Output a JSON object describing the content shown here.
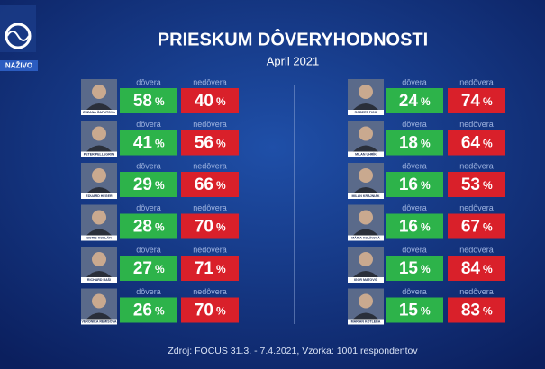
{
  "logo": {
    "badge": "NAŽIVO"
  },
  "header": {
    "title": "PRIESKUM DÔVERYHODNOSTI",
    "subtitle": "April 2021"
  },
  "labels": {
    "trust": "dôvera",
    "distrust": "nedôvera",
    "percent_sign": "%"
  },
  "columns": [
    [
      {
        "name": "ZUZANA ČAPUTOVÁ",
        "trust": "58",
        "distrust": "40"
      },
      {
        "name": "PETER PELLEGRINI",
        "trust": "41",
        "distrust": "56"
      },
      {
        "name": "EDUARD HEGER",
        "trust": "29",
        "distrust": "66"
      },
      {
        "name": "BORIS KOLLÁR",
        "trust": "28",
        "distrust": "70"
      },
      {
        "name": "RICHARD RAŠI",
        "trust": "27",
        "distrust": "71"
      },
      {
        "name": "VERONIKA REMIŠOVÁ",
        "trust": "26",
        "distrust": "70"
      }
    ],
    [
      {
        "name": "ROBERT FICO",
        "trust": "24",
        "distrust": "74"
      },
      {
        "name": "MILAN UHRÍK",
        "trust": "18",
        "distrust": "64"
      },
      {
        "name": "MILAN KRAJNIAK",
        "trust": "16",
        "distrust": "53"
      },
      {
        "name": "MÁRIA KOLÍKOVÁ",
        "trust": "16",
        "distrust": "67"
      },
      {
        "name": "IGOR MATOVIČ",
        "trust": "15",
        "distrust": "84"
      },
      {
        "name": "MARIAN KOTLEBA",
        "trust": "15",
        "distrust": "83"
      }
    ]
  ],
  "footer": {
    "source": "Zdroj: FOCUS 31.3. - 7.4.2021, Vzorka: 1001 respondentov"
  }
}
